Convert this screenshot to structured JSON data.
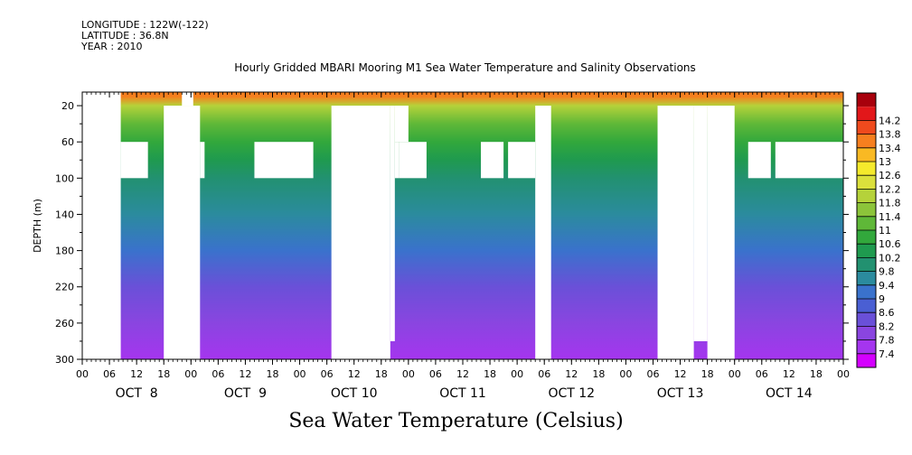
{
  "header": {
    "longitude": "LONGITUDE : 122W(-122)",
    "latitude": "LATITUDE : 36.8N",
    "year": "YEAR : 2010"
  },
  "chart_data": {
    "type": "heatmap",
    "title": "Hourly Gridded MBARI Mooring M1 Sea Water Temperature and Salinity Observations",
    "bottom_title": "Sea Water Temperature (Celsius)",
    "ylabel": "DEPTH (m)",
    "y_ticks": [
      20,
      60,
      100,
      140,
      180,
      220,
      260,
      300
    ],
    "ylim": [
      300,
      5
    ],
    "x_hour_ticks": [
      "00",
      "06",
      "12",
      "18"
    ],
    "x_days": [
      "OCT  8",
      "OCT  9",
      "OCT 10",
      "OCT 11",
      "OCT 12",
      "OCT 13",
      "OCT 14"
    ],
    "xlim_hours": [
      0,
      168
    ],
    "colorbar": {
      "levels": [
        7.4,
        7.8,
        8.2,
        8.6,
        9,
        9.4,
        9.8,
        10.2,
        10.6,
        11,
        11.4,
        11.8,
        12.2,
        12.6,
        13,
        13.4,
        13.8,
        14.2
      ],
      "colors": [
        "#d400ff",
        "#a535ef",
        "#8a45e0",
        "#6a50d8",
        "#4a5fd3",
        "#3a72cc",
        "#2b8b9e",
        "#229170",
        "#1f9a4f",
        "#32a83c",
        "#5fb838",
        "#8cc43a",
        "#b5d23a",
        "#dbe03c",
        "#f5ea2c",
        "#f9b923",
        "#f67f1f",
        "#ef4a1d",
        "#e2171a",
        "#a8000c"
      ]
    },
    "profile": [
      {
        "depth": 10,
        "value": 13.6
      },
      {
        "depth": 20,
        "value": 12.2
      },
      {
        "depth": 40,
        "value": 11.2
      },
      {
        "depth": 60,
        "value": 10.7
      },
      {
        "depth": 80,
        "value": 10.3
      },
      {
        "depth": 100,
        "value": 10.0
      },
      {
        "depth": 140,
        "value": 9.6
      },
      {
        "depth": 180,
        "value": 9.1
      },
      {
        "depth": 220,
        "value": 8.6
      },
      {
        "depth": 260,
        "value": 8.1
      },
      {
        "depth": 300,
        "value": 7.7
      }
    ],
    "missing_data_blocks": [
      {
        "t0": 0,
        "t1": 8.5,
        "d0": 5,
        "d1": 300
      },
      {
        "t0": 8.5,
        "t1": 14.5,
        "d0": 60,
        "d1": 100
      },
      {
        "t0": 18,
        "t1": 26,
        "d0": 20,
        "d1": 300
      },
      {
        "t0": 26,
        "t1": 27,
        "d0": 60,
        "d1": 100
      },
      {
        "t0": 22,
        "t1": 24.5,
        "d0": 5,
        "d1": 20
      },
      {
        "t0": 38,
        "t1": 51,
        "d0": 60,
        "d1": 100
      },
      {
        "t0": 55,
        "t1": 68,
        "d0": 20,
        "d1": 300
      },
      {
        "t0": 68,
        "t1": 69,
        "d0": 20,
        "d1": 280
      },
      {
        "t0": 69,
        "t1": 70,
        "d0": 60,
        "d1": 100
      },
      {
        "t0": 69,
        "t1": 72,
        "d0": 20,
        "d1": 60
      },
      {
        "t0": 70,
        "t1": 76,
        "d0": 60,
        "d1": 100
      },
      {
        "t0": 88,
        "t1": 93,
        "d0": 60,
        "d1": 100
      },
      {
        "t0": 94,
        "t1": 100,
        "d0": 60,
        "d1": 100
      },
      {
        "t0": 100,
        "t1": 103.5,
        "d0": 20,
        "d1": 300
      },
      {
        "t0": 127,
        "t1": 135,
        "d0": 20,
        "d1": 300
      },
      {
        "t0": 135,
        "t1": 138,
        "d0": 20,
        "d1": 280
      },
      {
        "t0": 138,
        "t1": 144,
        "d0": 20,
        "d1": 300
      },
      {
        "t0": 147,
        "t1": 152,
        "d0": 60,
        "d1": 100
      },
      {
        "t0": 153,
        "t1": 168,
        "d0": 60,
        "d1": 100
      }
    ]
  }
}
